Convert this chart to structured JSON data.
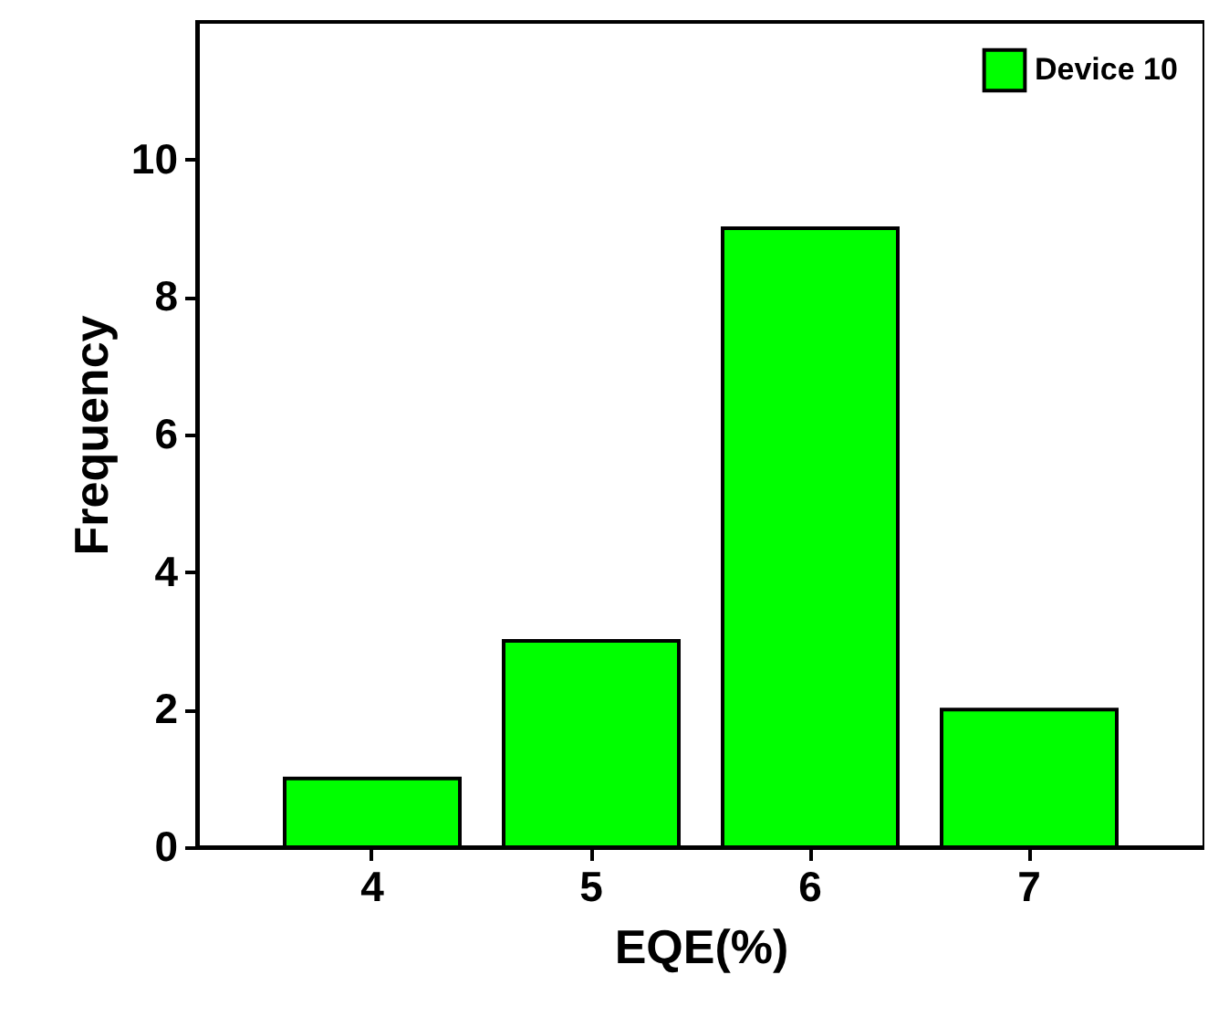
{
  "chart_data": {
    "type": "bar",
    "xlabel": "EQE(%)",
    "ylabel": "Frequency",
    "categories": [
      "4",
      "5",
      "6",
      "7"
    ],
    "series": [
      {
        "name": "Device 10",
        "color": "#00ff00",
        "values": [
          1,
          3,
          9,
          2
        ]
      }
    ],
    "ylim": [
      0,
      12
    ],
    "yticks": [
      0,
      2,
      4,
      6,
      8,
      10
    ],
    "grid": false,
    "legend": "top right"
  }
}
